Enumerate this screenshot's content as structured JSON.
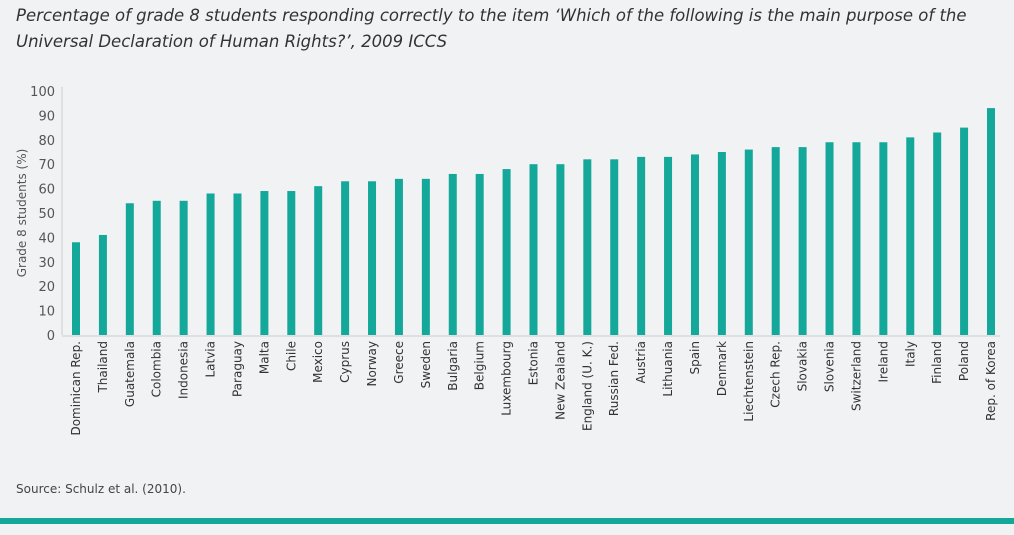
{
  "chart_data": {
    "type": "bar",
    "title": "Percentage of grade 8 students responding correctly to the item ‘Which of the following is the main purpose of the Universal Declaration of Human Rights?’, 2009 ICCS",
    "xlabel": "",
    "ylabel": "Grade 8 students (%)",
    "ylim": [
      0,
      100
    ],
    "yticks": [
      0,
      10,
      20,
      30,
      40,
      50,
      60,
      70,
      80,
      90,
      100
    ],
    "grid": false,
    "bar_color": "#13a89a",
    "categories": [
      "Dominican Rep.",
      "Thailand",
      "Guatemala",
      "Colombia",
      "Indonesia",
      "Latvia",
      "Paraguay",
      "Malta",
      "Chile",
      "Mexico",
      "Cyprus",
      "Norway",
      "Greece",
      "Sweden",
      "Bulgaria",
      "Belgium",
      "Luxembourg",
      "Estonia",
      "New Zealand",
      "England (U. K.)",
      "Russian Fed.",
      "Austria",
      "Lithuania",
      "Spain",
      "Denmark",
      "Liechtenstein",
      "Czech Rep.",
      "Slovakia",
      "Slovenia",
      "Switzerland",
      "Ireland",
      "Italy",
      "Finland",
      "Poland",
      "Rep. of Korea"
    ],
    "values": [
      38,
      41,
      54,
      55,
      55,
      58,
      58,
      59,
      59,
      61,
      63,
      63,
      64,
      64,
      66,
      66,
      68,
      70,
      70,
      72,
      72,
      73,
      73,
      74,
      75,
      76,
      77,
      77,
      79,
      79,
      79,
      81,
      83,
      85,
      93
    ]
  },
  "source": "Source: Schulz et al. (2010)."
}
